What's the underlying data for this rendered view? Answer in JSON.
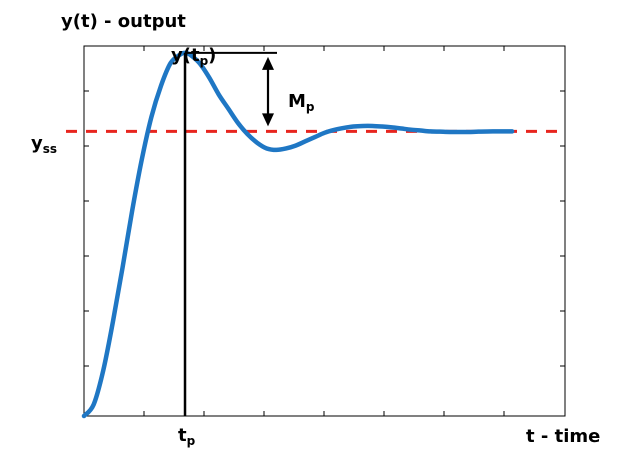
{
  "chart_data": {
    "type": "line",
    "ylabel": "y(t) - output",
    "xlabel": "t - time",
    "xlim": [
      0,
      10
    ],
    "ylim": [
      0,
      1.3
    ],
    "grid": false,
    "steady_state": {
      "value": 1.0,
      "label_main": "y",
      "label_sub": "ss",
      "color": "#e8251f",
      "style": "dashed"
    },
    "peak": {
      "t": 2.1,
      "y": 1.276,
      "label_main": "y(t",
      "label_sub": "p",
      "label_end": ")"
    },
    "peak_time_label": {
      "main": "t",
      "sub": "p"
    },
    "overshoot_label": {
      "main": "M",
      "sub": "p"
    },
    "series": [
      {
        "color": "#1f77c4",
        "points": [
          [
            0.0,
            0.0
          ],
          [
            0.2,
            0.04
          ],
          [
            0.4,
            0.16
          ],
          [
            0.6,
            0.33
          ],
          [
            0.8,
            0.52
          ],
          [
            1.0,
            0.72
          ],
          [
            1.2,
            0.9
          ],
          [
            1.4,
            1.05
          ],
          [
            1.6,
            1.16
          ],
          [
            1.8,
            1.24
          ],
          [
            2.0,
            1.27
          ],
          [
            2.1,
            1.276
          ],
          [
            2.2,
            1.27
          ],
          [
            2.4,
            1.24
          ],
          [
            2.6,
            1.19
          ],
          [
            2.8,
            1.13
          ],
          [
            3.0,
            1.08
          ],
          [
            3.2,
            1.03
          ],
          [
            3.4,
            0.99
          ],
          [
            3.6,
            0.96
          ],
          [
            3.8,
            0.94
          ],
          [
            4.0,
            0.935
          ],
          [
            4.2,
            0.94
          ],
          [
            4.4,
            0.95
          ],
          [
            4.6,
            0.965
          ],
          [
            4.8,
            0.98
          ],
          [
            5.0,
            0.995
          ],
          [
            5.2,
            1.005
          ],
          [
            5.4,
            1.012
          ],
          [
            5.6,
            1.017
          ],
          [
            5.8,
            1.019
          ],
          [
            6.0,
            1.019
          ],
          [
            6.2,
            1.017
          ],
          [
            6.4,
            1.014
          ],
          [
            6.6,
            1.01
          ],
          [
            6.8,
            1.006
          ],
          [
            7.0,
            1.003
          ],
          [
            7.2,
            1.0
          ],
          [
            7.4,
            0.999
          ],
          [
            7.6,
            0.998
          ],
          [
            7.8,
            0.998
          ],
          [
            8.0,
            0.998
          ],
          [
            8.2,
            0.999
          ],
          [
            8.5,
            1.0
          ],
          [
            8.9,
            1.0
          ]
        ]
      }
    ]
  }
}
